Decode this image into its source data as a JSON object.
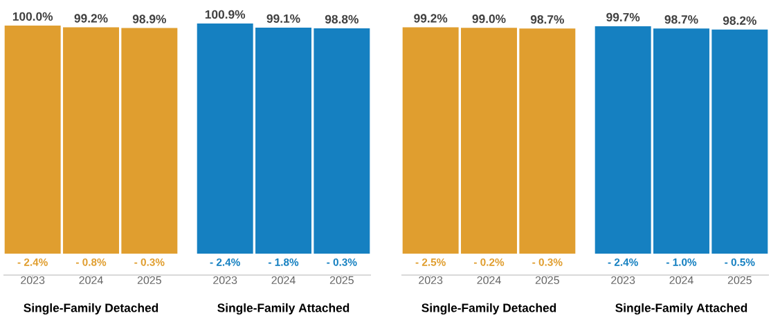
{
  "chart_data": [
    {
      "type": "bar",
      "categories": [
        "2023",
        "2024",
        "2025"
      ],
      "values": [
        100.0,
        99.2,
        98.9
      ],
      "value_labels": [
        "100.0%",
        "99.2%",
        "98.9%"
      ],
      "color": "#e09e2f",
      "xlabel": "Single-Family Detached",
      "tick_labels": "x",
      "annotations": [
        {
          "text": "- 2.4%",
          "x": "2023",
          "y": 0
        },
        {
          "text": "- 0.8%",
          "x": "2024",
          "y": 0
        },
        {
          "text": "- 0.3%",
          "x": "2025",
          "y": 0
        }
      ]
    },
    {
      "type": "bar",
      "categories": [
        "2023",
        "2024",
        "2025"
      ],
      "values": [
        100.9,
        99.1,
        98.8
      ],
      "value_labels": [
        "100.9%",
        "99.1%",
        "98.8%"
      ],
      "color": "#1580c1",
      "xlabel": "Single-Family Attached",
      "tick_labels": "x",
      "annotations": [
        {
          "text": "- 2.4%",
          "x": "2023",
          "y": 0
        },
        {
          "text": "- 1.8%",
          "x": "2024",
          "y": 0
        },
        {
          "text": "- 0.3%",
          "x": "2025",
          "y": 0
        }
      ]
    },
    {
      "type": "bar",
      "categories": [
        "2023",
        "2024",
        "2025"
      ],
      "values": [
        99.2,
        99.0,
        98.7
      ],
      "value_labels": [
        "99.2%",
        "99.0%",
        "98.7%"
      ],
      "color": "#e09e2f",
      "xlabel": "Single-Family Detached",
      "tick_labels": "x",
      "annotations": [
        {
          "text": "- 2.5%",
          "x": "2023",
          "y": 0
        },
        {
          "text": "- 0.2%",
          "x": "2024",
          "y": 0
        },
        {
          "text": "- 0.3%",
          "x": "2025",
          "y": 0
        }
      ]
    },
    {
      "type": "bar",
      "categories": [
        "2023",
        "2024",
        "2025"
      ],
      "values": [
        99.7,
        98.7,
        98.2
      ],
      "value_labels": [
        "99.7%",
        "98.7%",
        "98.2%"
      ],
      "color": "#1580c1",
      "xlabel": "Single-Family Attached",
      "tick_labels": "x",
      "annotations": [
        {
          "text": "- 2.4%",
          "x": "2023",
          "y": 0
        },
        {
          "text": "- 1.0%",
          "x": "2024",
          "y": 0
        },
        {
          "text": "- 0.5%",
          "x": "2025",
          "y": 0
        }
      ]
    }
  ]
}
